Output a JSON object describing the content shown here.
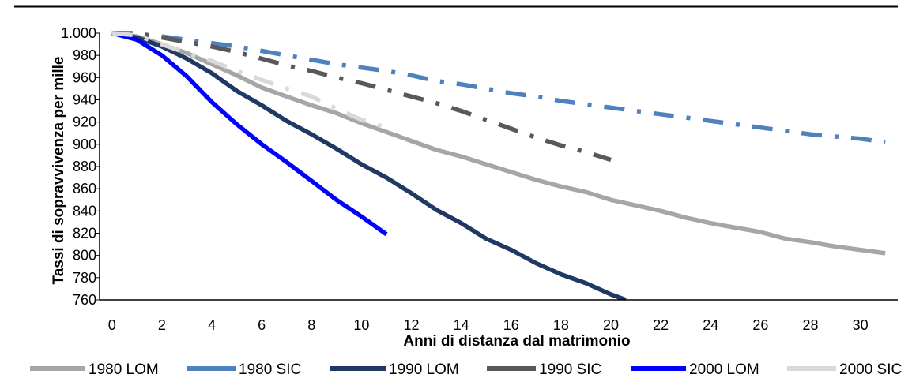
{
  "chart_data": {
    "type": "line",
    "title": "",
    "xlabel": "Anni di distanza dal matrimonio",
    "ylabel": "Tassi di sopravvivenza per mille",
    "xlim": [
      -0.5,
      31.5
    ],
    "ylim": [
      760,
      1000
    ],
    "x_ticks": [
      "0",
      "2",
      "4",
      "6",
      "8",
      "10",
      "12",
      "14",
      "16",
      "18",
      "20",
      "22",
      "24",
      "26",
      "28",
      "30"
    ],
    "y_ticks": [
      "1.000",
      "980",
      "960",
      "940",
      "920",
      "900",
      "880",
      "860",
      "840",
      "820",
      "800",
      "780",
      "760"
    ],
    "grid": false,
    "legend_position": "bottom",
    "series": [
      {
        "name": "1980 LOM",
        "color": "#a6a6a6",
        "style": "solid",
        "x": [
          0,
          1,
          2,
          3,
          4,
          5,
          6,
          7,
          8,
          9,
          10,
          11,
          12,
          13,
          14,
          15,
          16,
          17,
          18,
          19,
          20,
          21,
          22,
          23,
          24,
          25,
          26,
          27,
          28,
          29,
          30,
          31
        ],
        "y": [
          1000,
          997,
          990,
          982,
          972,
          962,
          951,
          943,
          935,
          928,
          919,
          911,
          903,
          895,
          889,
          882,
          875,
          868,
          862,
          857,
          850,
          845,
          840,
          834,
          829,
          825,
          821,
          815,
          812,
          808,
          805,
          802
        ]
      },
      {
        "name": "1980 SIC",
        "color": "#4f81bd",
        "style": "dashdot",
        "x": [
          0,
          1,
          2,
          3,
          4,
          5,
          6,
          7,
          8,
          9,
          10,
          11,
          12,
          13,
          14,
          15,
          16,
          17,
          18,
          19,
          20,
          21,
          22,
          23,
          24,
          25,
          26,
          27,
          28,
          29,
          30,
          31
        ],
        "y": [
          1000,
          999,
          997,
          994,
          991,
          988,
          984,
          980,
          976,
          972,
          969,
          966,
          962,
          957,
          954,
          950,
          946,
          943,
          939,
          936,
          933,
          930,
          927,
          924,
          921,
          918,
          915,
          912,
          909,
          907,
          905,
          902
        ]
      },
      {
        "name": "1990 LOM",
        "color": "#1f3864",
        "style": "solid",
        "x": [
          0,
          1,
          2,
          3,
          4,
          5,
          6,
          7,
          8,
          9,
          10,
          11,
          12,
          13,
          14,
          15,
          16,
          17,
          18,
          19,
          20,
          20.6
        ],
        "y": [
          1000,
          996,
          988,
          977,
          964,
          948,
          935,
          921,
          909,
          896,
          882,
          870,
          856,
          841,
          829,
          815,
          805,
          793,
          783,
          775,
          765,
          760
        ]
      },
      {
        "name": "1990 SIC",
        "color": "#595959",
        "style": "dashdot",
        "x": [
          0,
          1,
          2,
          3,
          4,
          5,
          6,
          7,
          8,
          9,
          10,
          11,
          12,
          13,
          14,
          15,
          16,
          17,
          18,
          19,
          20
        ],
        "y": [
          1000,
          1000,
          996,
          992,
          988,
          983,
          977,
          971,
          966,
          960,
          955,
          949,
          943,
          937,
          930,
          922,
          914,
          906,
          899,
          893,
          886
        ]
      },
      {
        "name": "2000 LOM",
        "color": "#0000ff",
        "style": "solid",
        "x": [
          0,
          1,
          2,
          3,
          4,
          5,
          6,
          7,
          8,
          9,
          10,
          11
        ],
        "y": [
          1000,
          994,
          980,
          961,
          938,
          918,
          900,
          884,
          867,
          850,
          835,
          819
        ]
      },
      {
        "name": "2000 SIC",
        "color": "#d9d9d9",
        "style": "dashdot",
        "x": [
          0,
          1,
          2,
          3,
          4,
          5,
          6,
          7,
          8,
          9,
          10,
          11
        ],
        "y": [
          1000,
          998,
          990,
          982,
          975,
          966,
          958,
          950,
          943,
          932,
          922,
          915
        ]
      }
    ]
  }
}
